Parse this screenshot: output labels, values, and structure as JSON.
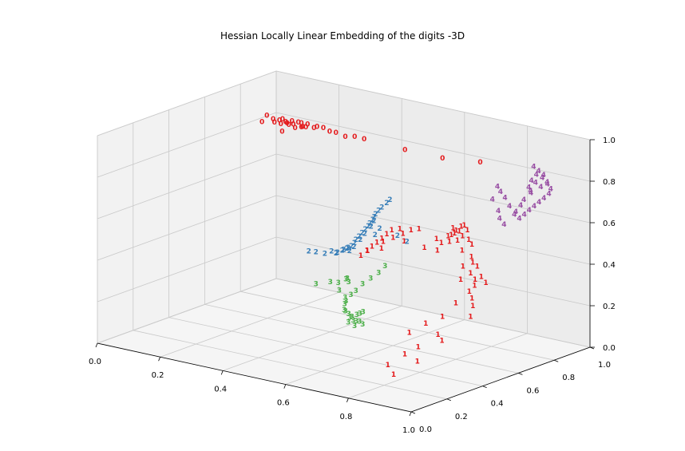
{
  "chart_data": {
    "type": "scatter",
    "projection": "3d",
    "title": "Hessian Locally Linear Embedding of the digits -3D",
    "xlim": [
      0,
      1
    ],
    "ylim": [
      0,
      1
    ],
    "zlim": [
      0,
      1
    ],
    "x_ticks": [
      "0.0",
      "0.2",
      "0.4",
      "0.6",
      "0.8",
      "1.0"
    ],
    "y_ticks": [
      "0.0",
      "0.2",
      "0.4",
      "0.6",
      "0.8",
      "1.0"
    ],
    "z_ticks": [
      "0.0",
      "0.2",
      "0.4",
      "0.6",
      "0.8",
      "1.0"
    ],
    "grid": true,
    "series": [
      {
        "label": "0",
        "color": "#e41a1c",
        "points": [
          [
            0.01,
            0.93,
            0.8
          ],
          [
            0.03,
            0.93,
            0.79
          ],
          [
            0.05,
            0.93,
            0.79
          ],
          [
            0.06,
            0.92,
            0.78
          ],
          [
            0.07,
            0.93,
            0.79
          ],
          [
            0.08,
            0.92,
            0.79
          ],
          [
            0.09,
            0.93,
            0.8
          ],
          [
            0.1,
            0.92,
            0.79
          ],
          [
            0.11,
            0.93,
            0.8
          ],
          [
            0.12,
            0.93,
            0.8
          ],
          [
            0.13,
            0.92,
            0.79
          ],
          [
            0.14,
            0.93,
            0.8
          ],
          [
            0.08,
            0.93,
            0.78
          ],
          [
            0.06,
            0.93,
            0.8
          ],
          [
            0.04,
            0.92,
            0.78
          ],
          [
            0.1,
            0.93,
            0.77
          ],
          [
            0.12,
            0.93,
            0.78
          ],
          [
            0.14,
            0.92,
            0.79
          ],
          [
            0.16,
            0.93,
            0.79
          ],
          [
            0.17,
            0.93,
            0.8
          ],
          [
            0.19,
            0.93,
            0.8
          ],
          [
            0.21,
            0.93,
            0.79
          ],
          [
            0.23,
            0.93,
            0.79
          ],
          [
            0.26,
            0.93,
            0.78
          ],
          [
            0.29,
            0.93,
            0.79
          ],
          [
            0.32,
            0.93,
            0.79
          ],
          [
            0.45,
            0.93,
            0.78
          ],
          [
            0.57,
            0.93,
            0.78
          ],
          [
            0.69,
            0.93,
            0.8
          ],
          [
            0.0,
            0.92,
            0.77
          ],
          [
            0.07,
            0.91,
            0.75
          ]
        ]
      },
      {
        "label": "1",
        "color": "#e41a1c",
        "points": [
          [
            0.62,
            0.42,
            0.51
          ],
          [
            0.64,
            0.44,
            0.55
          ],
          [
            0.66,
            0.46,
            0.59
          ],
          [
            0.61,
            0.44,
            0.5
          ],
          [
            0.65,
            0.45,
            0.57
          ],
          [
            0.67,
            0.47,
            0.61
          ],
          [
            0.69,
            0.48,
            0.62
          ],
          [
            0.63,
            0.43,
            0.53
          ],
          [
            0.6,
            0.42,
            0.48
          ],
          [
            0.66,
            0.44,
            0.56
          ],
          [
            0.7,
            0.48,
            0.6
          ],
          [
            0.72,
            0.49,
            0.62
          ],
          [
            0.74,
            0.5,
            0.63
          ],
          [
            0.68,
            0.46,
            0.58
          ],
          [
            0.66,
            0.43,
            0.53
          ],
          [
            0.71,
            0.47,
            0.57
          ],
          [
            0.78,
            0.61,
            0.58
          ],
          [
            0.79,
            0.62,
            0.6
          ],
          [
            0.8,
            0.63,
            0.62
          ],
          [
            0.81,
            0.63,
            0.63
          ],
          [
            0.78,
            0.62,
            0.61
          ],
          [
            0.79,
            0.61,
            0.59
          ],
          [
            0.8,
            0.62,
            0.6
          ],
          [
            0.77,
            0.61,
            0.57
          ],
          [
            0.81,
            0.62,
            0.58
          ],
          [
            0.82,
            0.63,
            0.61
          ],
          [
            0.78,
            0.6,
            0.55
          ],
          [
            0.8,
            0.61,
            0.56
          ],
          [
            0.83,
            0.62,
            0.57
          ],
          [
            0.76,
            0.59,
            0.54
          ],
          [
            0.84,
            0.62,
            0.55
          ],
          [
            0.82,
            0.6,
            0.52
          ],
          [
            0.85,
            0.6,
            0.5
          ],
          [
            0.86,
            0.59,
            0.48
          ],
          [
            0.84,
            0.57,
            0.46
          ],
          [
            0.88,
            0.58,
            0.47
          ],
          [
            0.87,
            0.56,
            0.44
          ],
          [
            0.89,
            0.55,
            0.42
          ],
          [
            0.85,
            0.54,
            0.41
          ],
          [
            0.9,
            0.53,
            0.4
          ],
          [
            0.91,
            0.55,
            0.44
          ],
          [
            0.93,
            0.54,
            0.42
          ],
          [
            0.9,
            0.5,
            0.38
          ],
          [
            0.92,
            0.48,
            0.36
          ],
          [
            0.88,
            0.46,
            0.33
          ],
          [
            0.94,
            0.45,
            0.34
          ],
          [
            0.95,
            0.42,
            0.3
          ],
          [
            0.86,
            0.42,
            0.27
          ],
          [
            0.83,
            0.38,
            0.24
          ],
          [
            0.8,
            0.34,
            0.2
          ],
          [
            0.88,
            0.36,
            0.21
          ],
          [
            0.91,
            0.33,
            0.2
          ],
          [
            0.84,
            0.32,
            0.15
          ],
          [
            0.82,
            0.28,
            0.12
          ],
          [
            0.86,
            0.28,
            0.1
          ],
          [
            0.8,
            0.22,
            0.08
          ],
          [
            0.83,
            0.2,
            0.05
          ],
          [
            0.77,
            0.55,
            0.52
          ],
          [
            0.74,
            0.53,
            0.53
          ],
          [
            0.75,
            0.58,
            0.56
          ]
        ]
      },
      {
        "label": "2",
        "color": "#377eb8",
        "points": [
          [
            0.36,
            0.55,
            0.38
          ],
          [
            0.4,
            0.52,
            0.4
          ],
          [
            0.44,
            0.5,
            0.41
          ],
          [
            0.45,
            0.52,
            0.42
          ],
          [
            0.47,
            0.51,
            0.42
          ],
          [
            0.48,
            0.5,
            0.43
          ],
          [
            0.49,
            0.51,
            0.44
          ],
          [
            0.5,
            0.5,
            0.45
          ],
          [
            0.51,
            0.5,
            0.46
          ],
          [
            0.52,
            0.49,
            0.47
          ],
          [
            0.53,
            0.49,
            0.48
          ],
          [
            0.54,
            0.49,
            0.5
          ],
          [
            0.55,
            0.48,
            0.52
          ],
          [
            0.56,
            0.48,
            0.54
          ],
          [
            0.57,
            0.48,
            0.56
          ],
          [
            0.58,
            0.48,
            0.58
          ],
          [
            0.59,
            0.48,
            0.6
          ],
          [
            0.6,
            0.47,
            0.62
          ],
          [
            0.61,
            0.47,
            0.64
          ],
          [
            0.62,
            0.46,
            0.66
          ],
          [
            0.63,
            0.45,
            0.68
          ],
          [
            0.64,
            0.45,
            0.7
          ],
          [
            0.65,
            0.45,
            0.72
          ],
          [
            0.66,
            0.46,
            0.74
          ],
          [
            0.67,
            0.46,
            0.76
          ],
          [
            0.53,
            0.48,
            0.46
          ],
          [
            0.55,
            0.47,
            0.49
          ],
          [
            0.57,
            0.47,
            0.53
          ],
          [
            0.59,
            0.46,
            0.57
          ],
          [
            0.61,
            0.46,
            0.61
          ],
          [
            0.63,
            0.44,
            0.65
          ],
          [
            0.7,
            0.45,
            0.6
          ],
          [
            0.73,
            0.45,
            0.58
          ],
          [
            0.64,
            0.43,
            0.59
          ],
          [
            0.66,
            0.42,
            0.63
          ]
        ]
      },
      {
        "label": "3",
        "color": "#4daf4a",
        "points": [
          [
            0.44,
            0.45,
            0.28
          ],
          [
            0.48,
            0.46,
            0.3
          ],
          [
            0.5,
            0.47,
            0.3
          ],
          [
            0.52,
            0.44,
            0.28
          ],
          [
            0.55,
            0.42,
            0.26
          ],
          [
            0.56,
            0.4,
            0.24
          ],
          [
            0.57,
            0.38,
            0.22
          ],
          [
            0.58,
            0.37,
            0.22
          ],
          [
            0.59,
            0.37,
            0.21
          ],
          [
            0.6,
            0.36,
            0.2
          ],
          [
            0.61,
            0.36,
            0.19
          ],
          [
            0.62,
            0.36,
            0.19
          ],
          [
            0.63,
            0.36,
            0.19
          ],
          [
            0.64,
            0.36,
            0.18
          ],
          [
            0.6,
            0.37,
            0.2
          ],
          [
            0.61,
            0.38,
            0.21
          ],
          [
            0.62,
            0.38,
            0.22
          ],
          [
            0.63,
            0.38,
            0.23
          ],
          [
            0.6,
            0.35,
            0.18
          ],
          [
            0.62,
            0.35,
            0.17
          ],
          [
            0.57,
            0.39,
            0.26
          ],
          [
            0.58,
            0.4,
            0.29
          ],
          [
            0.59,
            0.41,
            0.31
          ],
          [
            0.6,
            0.43,
            0.34
          ],
          [
            0.62,
            0.44,
            0.37
          ],
          [
            0.64,
            0.45,
            0.4
          ],
          [
            0.66,
            0.45,
            0.44
          ],
          [
            0.53,
            0.46,
            0.33
          ],
          [
            0.54,
            0.45,
            0.34
          ],
          [
            0.55,
            0.44,
            0.33
          ]
        ]
      },
      {
        "label": "4",
        "color": "#984ea3",
        "points": [
          [
            0.94,
            0.71,
            0.68
          ],
          [
            0.95,
            0.72,
            0.7
          ],
          [
            0.96,
            0.73,
            0.72
          ],
          [
            0.97,
            0.74,
            0.74
          ],
          [
            0.98,
            0.75,
            0.76
          ],
          [
            0.99,
            0.76,
            0.78
          ],
          [
            1.0,
            0.77,
            0.8
          ],
          [
            1.0,
            0.78,
            0.82
          ],
          [
            0.99,
            0.78,
            0.84
          ],
          [
            1.0,
            0.76,
            0.86
          ],
          [
            0.99,
            0.75,
            0.88
          ],
          [
            1.0,
            0.74,
            0.9
          ],
          [
            0.98,
            0.73,
            0.86
          ],
          [
            0.97,
            0.72,
            0.82
          ],
          [
            0.96,
            0.74,
            0.8
          ],
          [
            0.98,
            0.76,
            0.83
          ],
          [
            0.95,
            0.7,
            0.75
          ],
          [
            0.94,
            0.69,
            0.72
          ],
          [
            0.93,
            0.7,
            0.7
          ],
          [
            0.92,
            0.69,
            0.74
          ],
          [
            0.9,
            0.7,
            0.77
          ],
          [
            0.88,
            0.71,
            0.79
          ],
          [
            0.87,
            0.71,
            0.81
          ],
          [
            0.86,
            0.7,
            0.75
          ],
          [
            0.89,
            0.68,
            0.71
          ],
          [
            0.9,
            0.67,
            0.68
          ],
          [
            0.92,
            0.66,
            0.66
          ],
          [
            0.96,
            0.7,
            0.78
          ],
          [
            0.97,
            0.71,
            0.84
          ],
          [
            0.99,
            0.73,
            0.92
          ],
          [
            0.98,
            0.72,
            0.94
          ],
          [
            0.96,
            0.77,
            0.88
          ],
          [
            0.95,
            0.76,
            0.85
          ]
        ]
      }
    ]
  }
}
